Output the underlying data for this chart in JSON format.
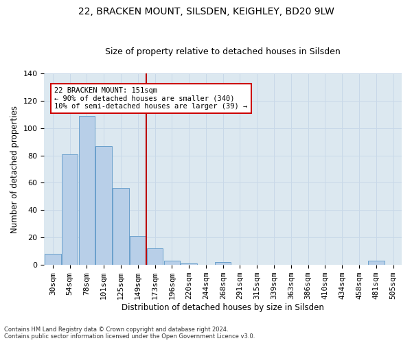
{
  "title": "22, BRACKEN MOUNT, SILSDEN, KEIGHLEY, BD20 9LW",
  "subtitle": "Size of property relative to detached houses in Silsden",
  "xlabel": "Distribution of detached houses by size in Silsden",
  "ylabel": "Number of detached properties",
  "footnote1": "Contains HM Land Registry data © Crown copyright and database right 2024.",
  "footnote2": "Contains public sector information licensed under the Open Government Licence v3.0.",
  "bar_labels": [
    "30sqm",
    "54sqm",
    "78sqm",
    "101sqm",
    "125sqm",
    "149sqm",
    "173sqm",
    "196sqm",
    "220sqm",
    "244sqm",
    "268sqm",
    "291sqm",
    "315sqm",
    "339sqm",
    "363sqm",
    "386sqm",
    "410sqm",
    "434sqm",
    "458sqm",
    "481sqm",
    "505sqm"
  ],
  "bar_values": [
    8,
    81,
    109,
    87,
    56,
    21,
    12,
    3,
    1,
    0,
    2,
    0,
    0,
    0,
    0,
    0,
    0,
    0,
    0,
    3,
    0
  ],
  "bar_color": "#b8cfe8",
  "bar_edge_color": "#6aa0cc",
  "grid_color": "#c8d8e8",
  "background_color": "#dce8f0",
  "vline_x_index": 5.5,
  "vline_color": "#bb0000",
  "annotation_text": "22 BRACKEN MOUNT: 151sqm\n← 90% of detached houses are smaller (340)\n10% of semi-detached houses are larger (39) →",
  "annotation_box_color": "#cc0000",
  "ylim": [
    0,
    140
  ],
  "yticks": [
    0,
    20,
    40,
    60,
    80,
    100,
    120,
    140
  ],
  "title_fontsize": 10,
  "subtitle_fontsize": 9,
  "xlabel_fontsize": 8.5,
  "ylabel_fontsize": 8.5,
  "tick_fontsize": 8,
  "annotation_fontsize": 7.5
}
